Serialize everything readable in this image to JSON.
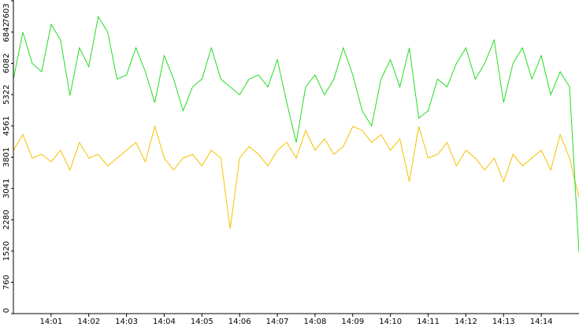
{
  "chart_data": {
    "type": "line",
    "x": [
      840,
      840.25,
      840.5,
      840.75,
      841,
      841.25,
      841.5,
      841.75,
      842,
      842.25,
      842.5,
      842.75,
      843,
      843.25,
      843.5,
      843.75,
      844,
      844.25,
      844.5,
      844.75,
      845,
      845.25,
      845.5,
      845.75,
      846,
      846.25,
      846.5,
      846.75,
      847,
      847.25,
      847.5,
      847.75,
      848,
      848.25,
      848.5,
      848.75,
      849,
      849.25,
      849.5,
      849.75,
      850,
      850.25,
      850.5,
      850.75,
      851,
      851.25,
      851.5,
      851.75,
      852,
      852.25,
      852.5,
      852.75,
      853,
      853.25,
      853.5,
      853.75,
      854,
      854.25,
      854.5,
      854.75,
      855
    ],
    "series": [
      {
        "color": "#22dd22",
        "values": [
          5700,
          6840,
          6080,
          5880,
          7030,
          6650,
          5300,
          6460,
          6000,
          7220,
          6840,
          5700,
          5800,
          6460,
          5880,
          5130,
          6270,
          5700,
          4930,
          5510,
          5700,
          6460,
          5700,
          5510,
          5320,
          5700,
          5800,
          5510,
          6170,
          5130,
          4160,
          5510,
          5800,
          5320,
          5700,
          6460,
          5800,
          4930,
          4560,
          5700,
          6170,
          5510,
          6460,
          4750,
          4930,
          5700,
          5510,
          6080,
          6460,
          5700,
          6080,
          6650,
          5130,
          6080,
          6460,
          5700,
          6270,
          5320,
          5880,
          5510,
          1490
        ]
      },
      {
        "color": "#f5c000",
        "values": [
          3970,
          4350,
          3780,
          3870,
          3690,
          3970,
          3490,
          4160,
          3780,
          3870,
          3590,
          3780,
          3970,
          4160,
          3690,
          4550,
          3780,
          3490,
          3780,
          3870,
          3590,
          3970,
          3780,
          2060,
          3780,
          4060,
          3870,
          3590,
          3970,
          4160,
          3780,
          4450,
          3970,
          4250,
          3870,
          4060,
          4550,
          4450,
          4160,
          4350,
          3970,
          4250,
          3210,
          4550,
          3780,
          3870,
          4160,
          3590,
          3970,
          3780,
          3490,
          3780,
          3210,
          3870,
          3590,
          3780,
          3970,
          3490,
          4350,
          3780,
          2820
        ]
      }
    ],
    "xlim": [
      840,
      855
    ],
    "xticks": [
      {
        "value": 841,
        "label": "14:01"
      },
      {
        "value": 842,
        "label": "14:02"
      },
      {
        "value": 843,
        "label": "14:03"
      },
      {
        "value": 844,
        "label": "14:04"
      },
      {
        "value": 845,
        "label": "14:05"
      },
      {
        "value": 846,
        "label": "14:06"
      },
      {
        "value": 847,
        "label": "14:07"
      },
      {
        "value": 848,
        "label": "14:08"
      },
      {
        "value": 849,
        "label": "14:09"
      },
      {
        "value": 850,
        "label": "14:10"
      },
      {
        "value": 851,
        "label": "14:11"
      },
      {
        "value": 852,
        "label": "14:12"
      },
      {
        "value": 853,
        "label": "14:13"
      },
      {
        "value": 854,
        "label": "14:14"
      }
    ],
    "ylim": [
      0,
      7603
    ],
    "yticks": [
      0,
      760,
      1520,
      2280,
      3041,
      3801,
      4561,
      5322,
      6082,
      6842,
      7603
    ]
  }
}
